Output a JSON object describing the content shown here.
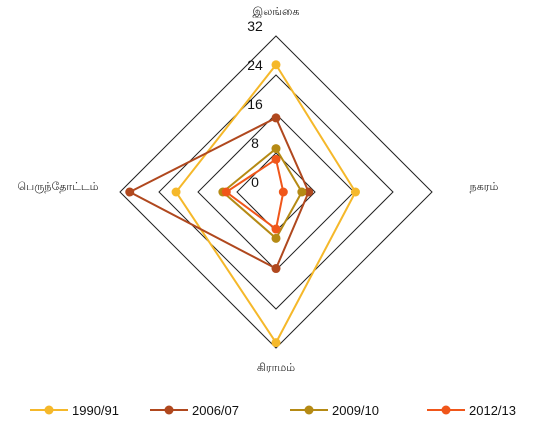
{
  "chart_data": {
    "type": "radar",
    "axes": [
      "இலங்கை",
      "நகரம்",
      "கிராமம்",
      "பெருந்தோட்டம்"
    ],
    "ticks": [
      0,
      8,
      16,
      24,
      32
    ],
    "range": [
      0,
      32
    ],
    "legend_position": "bottom",
    "series": [
      {
        "name": "1990/91",
        "color": "#F5B82A",
        "values": [
          26.1,
          16.3,
          30.9,
          20.5
        ]
      },
      {
        "name": "2006/07",
        "color": "#B0481E",
        "values": [
          15.2,
          6.7,
          15.7,
          30.0
        ]
      },
      {
        "name": "2009/10",
        "color": "#B58A14",
        "values": [
          8.9,
          5.3,
          9.5,
          10.9
        ]
      },
      {
        "name": "2012/13",
        "color": "#F0561A",
        "values": [
          6.7,
          1.5,
          7.6,
          10.2
        ]
      }
    ]
  }
}
